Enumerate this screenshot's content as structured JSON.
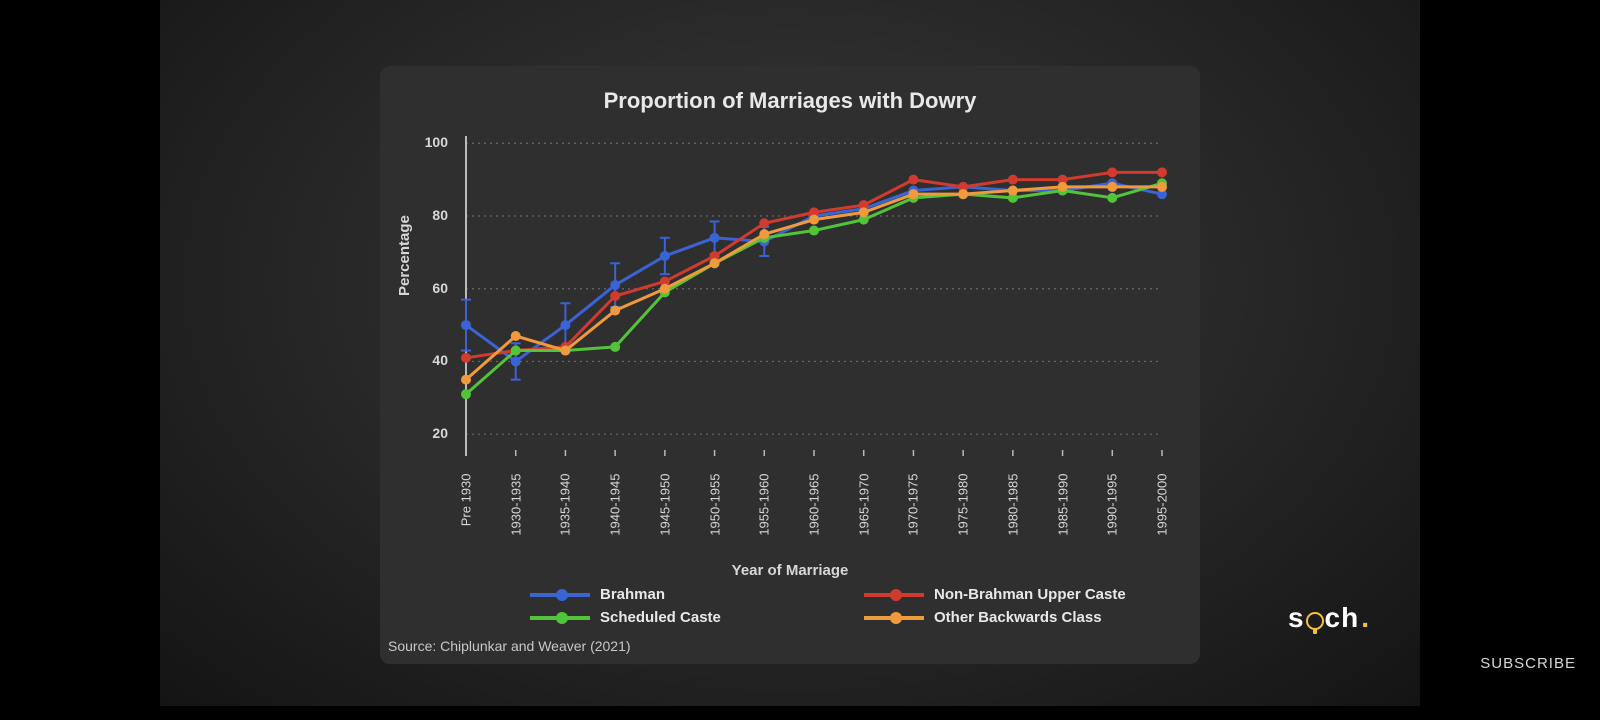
{
  "subscribe_label": "SUBSCRIBE",
  "brand": {
    "s": "s",
    "ch": "ch",
    "dot": "."
  },
  "chart": {
    "type": "line",
    "title": "Proportion of Marriages with Dowry",
    "y_label": "Percentage",
    "x_label": "Year of Marriage",
    "source": "Source: Chiplunkar and Weaver (2021)",
    "background_color": "#2f2f2f",
    "grid_color": "#888888",
    "grid_dash": "2,4",
    "title_color": "#e8e8e8",
    "label_color": "#d8d8d8",
    "title_fontsize": 22,
    "label_fontsize": 15,
    "tick_fontsize": 14,
    "marker_radius": 5,
    "line_width": 3,
    "ylim": [
      14,
      102
    ],
    "y_ticks": [
      20,
      40,
      60,
      80,
      100
    ],
    "x_categories": [
      "Pre 1930",
      "1930-1935",
      "1935-1940",
      "1940-1945",
      "1945-1950",
      "1950-1955",
      "1955-1960",
      "1960-1965",
      "1965-1970",
      "1970-1975",
      "1975-1980",
      "1980-1985",
      "1985-1990",
      "1990-1995",
      "1995-2000"
    ],
    "series": [
      {
        "name": "Brahman",
        "color": "#3a64d6",
        "values": [
          50,
          40,
          50,
          61,
          69,
          74,
          73,
          80,
          82,
          87,
          88,
          87,
          87,
          89,
          86
        ],
        "error_bars": [
          7,
          5,
          6,
          6,
          5,
          4.5,
          4,
          0,
          0,
          0,
          0,
          0,
          0,
          0,
          0
        ]
      },
      {
        "name": "Non-Brahman Upper Caste",
        "color": "#d13b2f",
        "values": [
          41,
          43,
          44,
          58,
          62,
          69,
          78,
          81,
          83,
          90,
          88,
          90,
          90,
          92,
          92
        ],
        "error_bars": [
          0,
          0,
          0,
          0,
          0,
          0,
          0,
          0,
          0,
          0,
          0,
          0,
          0,
          0,
          0
        ]
      },
      {
        "name": "Scheduled Caste",
        "color": "#52c43a",
        "values": [
          31,
          43,
          43,
          44,
          59,
          67,
          74,
          76,
          79,
          85,
          86,
          85,
          87,
          85,
          89
        ],
        "error_bars": [
          0,
          0,
          0,
          0,
          0,
          0,
          0,
          0,
          0,
          0,
          0,
          0,
          0,
          0,
          0
        ]
      },
      {
        "name": "Other Backwards Class",
        "color": "#f09a3e",
        "values": [
          35,
          47,
          43,
          54,
          60,
          67,
          75,
          79,
          81,
          86,
          86,
          87,
          88,
          88,
          88
        ],
        "error_bars": [
          0,
          0,
          0,
          0,
          0,
          0,
          0,
          0,
          0,
          0,
          0,
          0,
          0,
          0,
          0
        ]
      }
    ],
    "legend": {
      "position": "bottom",
      "columns": 2
    }
  }
}
